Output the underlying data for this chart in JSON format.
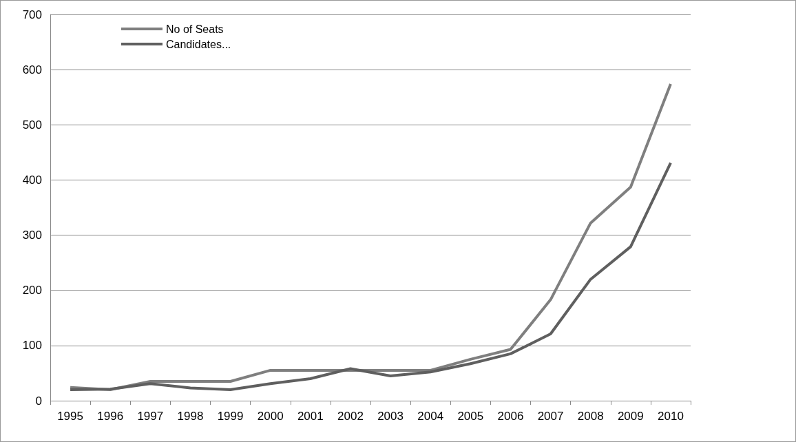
{
  "chart_data": {
    "type": "line",
    "categories": [
      "1995",
      "1996",
      "1997",
      "1998",
      "1999",
      "2000",
      "2001",
      "2002",
      "2003",
      "2004",
      "2005",
      "2006",
      "2007",
      "2008",
      "2009",
      "2010"
    ],
    "series": [
      {
        "name": "No of Seats",
        "color": "#7f7f7f",
        "values": [
          24,
          20,
          35,
          35,
          35,
          55,
          55,
          55,
          55,
          55,
          75,
          93,
          183,
          322,
          387,
          574
        ]
      },
      {
        "name": "Candidates...",
        "color": "#5f5f5f",
        "values": [
          20,
          21,
          31,
          23,
          20,
          31,
          40,
          58,
          45,
          52,
          67,
          85,
          121,
          220,
          279,
          431
        ]
      }
    ],
    "ylim": [
      0,
      700
    ],
    "yticks": [
      0,
      100,
      200,
      300,
      400,
      500,
      600,
      700
    ],
    "grid": "y",
    "legend": "top left",
    "marker": "none",
    "line_style": "solid"
  }
}
